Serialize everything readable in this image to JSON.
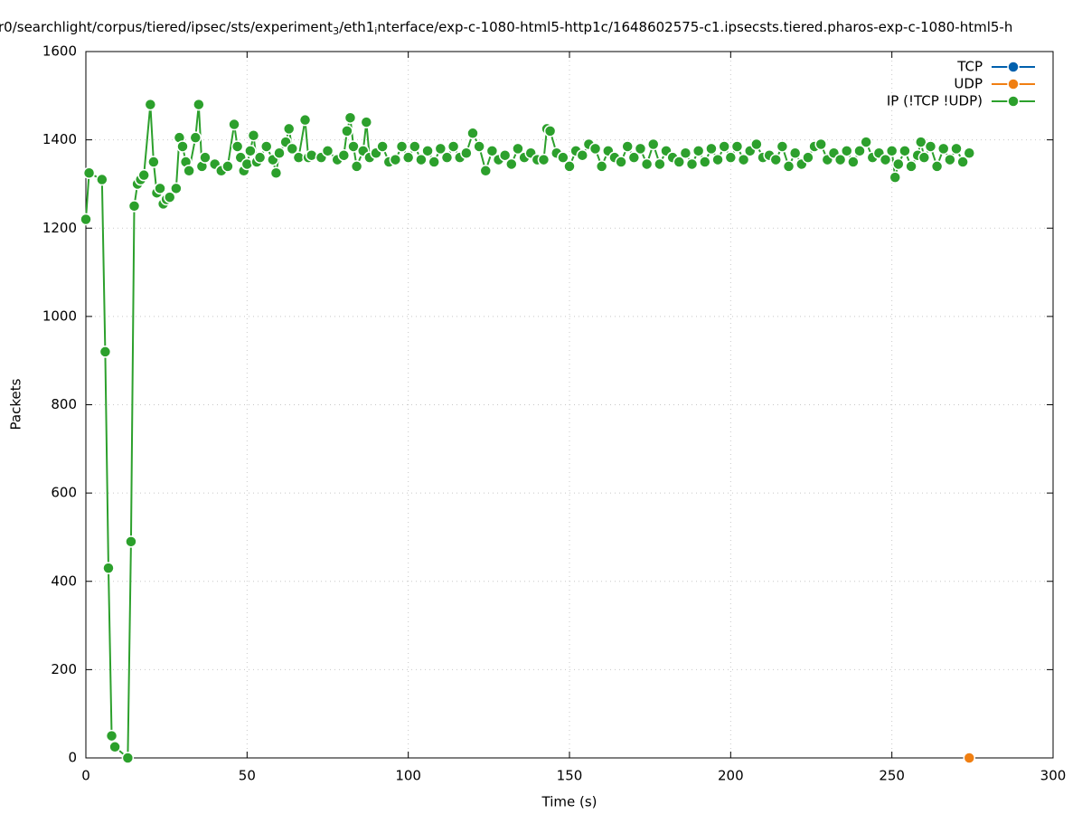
{
  "chart_data": {
    "type": "line",
    "title_parts": [
      "r0/searchlight/corpus/tiered/ipsec/sts/experiment",
      "3",
      "/eth1",
      "i",
      "nterface/exp-c-1080-html5-http1c/1648602575-c1.ipsecsts.tiered.pharos-exp-c-1080-html5-h"
    ],
    "x_label": "Time (s)",
    "y_label": "Packets",
    "xlim": [
      0,
      300
    ],
    "xticks": [
      0,
      50,
      100,
      150,
      200,
      250,
      300
    ],
    "ylim": [
      0,
      1600
    ],
    "yticks": [
      0,
      200,
      400,
      600,
      800,
      1000,
      1200,
      1400,
      1600
    ],
    "grid": true,
    "legend": "top-right",
    "series": [
      {
        "name": "TCP",
        "color": "#0060ad",
        "x": [],
        "values": []
      },
      {
        "name": "UDP",
        "color": "#f07f12",
        "x": [
          274
        ],
        "values": [
          0
        ]
      },
      {
        "name": "IP (!TCP  !UDP)",
        "color": "#2ca02c",
        "x": [
          0,
          1,
          5,
          6,
          7,
          8,
          9,
          13,
          14,
          15,
          16,
          17,
          18,
          20,
          21,
          22,
          23,
          24,
          25,
          26,
          28,
          29,
          30,
          31,
          32,
          34,
          35,
          36,
          37,
          40,
          42,
          44,
          46,
          47,
          48,
          49,
          50,
          51,
          52,
          53,
          54,
          56,
          58,
          59,
          60,
          62,
          63,
          64,
          66,
          68,
          69,
          70,
          73,
          75,
          78,
          80,
          81,
          82,
          83,
          84,
          86,
          87,
          88,
          90,
          92,
          94,
          96,
          98,
          100,
          102,
          104,
          106,
          108,
          110,
          112,
          114,
          116,
          118,
          120,
          122,
          124,
          126,
          128,
          130,
          132,
          134,
          136,
          138,
          140,
          142,
          143,
          144,
          146,
          148,
          150,
          152,
          154,
          156,
          158,
          160,
          162,
          164,
          166,
          168,
          170,
          172,
          174,
          176,
          178,
          180,
          182,
          184,
          186,
          188,
          190,
          192,
          194,
          196,
          198,
          200,
          202,
          204,
          206,
          208,
          210,
          212,
          214,
          216,
          218,
          220,
          222,
          224,
          226,
          228,
          230,
          232,
          234,
          236,
          238,
          240,
          242,
          244,
          246,
          248,
          250,
          251,
          252,
          254,
          256,
          258,
          259,
          260,
          262,
          264,
          266,
          268,
          270,
          272,
          274
        ],
        "values": [
          1220,
          1325,
          1310,
          920,
          430,
          50,
          25,
          0,
          490,
          1250,
          1300,
          1310,
          1320,
          1480,
          1350,
          1280,
          1290,
          1255,
          1265,
          1270,
          1290,
          1405,
          1385,
          1350,
          1330,
          1405,
          1480,
          1340,
          1360,
          1345,
          1330,
          1340,
          1435,
          1385,
          1360,
          1330,
          1345,
          1375,
          1410,
          1350,
          1360,
          1385,
          1355,
          1325,
          1370,
          1395,
          1425,
          1380,
          1360,
          1445,
          1360,
          1365,
          1360,
          1375,
          1355,
          1365,
          1420,
          1450,
          1385,
          1340,
          1375,
          1440,
          1360,
          1370,
          1385,
          1350,
          1355,
          1385,
          1360,
          1385,
          1355,
          1375,
          1350,
          1380,
          1360,
          1385,
          1360,
          1370,
          1415,
          1385,
          1330,
          1375,
          1355,
          1365,
          1345,
          1380,
          1360,
          1370,
          1355,
          1355,
          1425,
          1420,
          1370,
          1360,
          1340,
          1375,
          1365,
          1390,
          1380,
          1340,
          1375,
          1360,
          1350,
          1385,
          1360,
          1380,
          1345,
          1390,
          1345,
          1375,
          1360,
          1350,
          1370,
          1345,
          1375,
          1350,
          1380,
          1355,
          1385,
          1360,
          1385,
          1355,
          1375,
          1390,
          1360,
          1365,
          1355,
          1385,
          1340,
          1370,
          1345,
          1360,
          1385,
          1390,
          1355,
          1370,
          1355,
          1375,
          1350,
          1375,
          1395,
          1360,
          1370,
          1355,
          1375,
          1315,
          1345,
          1375,
          1340,
          1365,
          1395,
          1360,
          1385,
          1340,
          1380,
          1355,
          1380,
          1350,
          1370
        ]
      }
    ]
  }
}
